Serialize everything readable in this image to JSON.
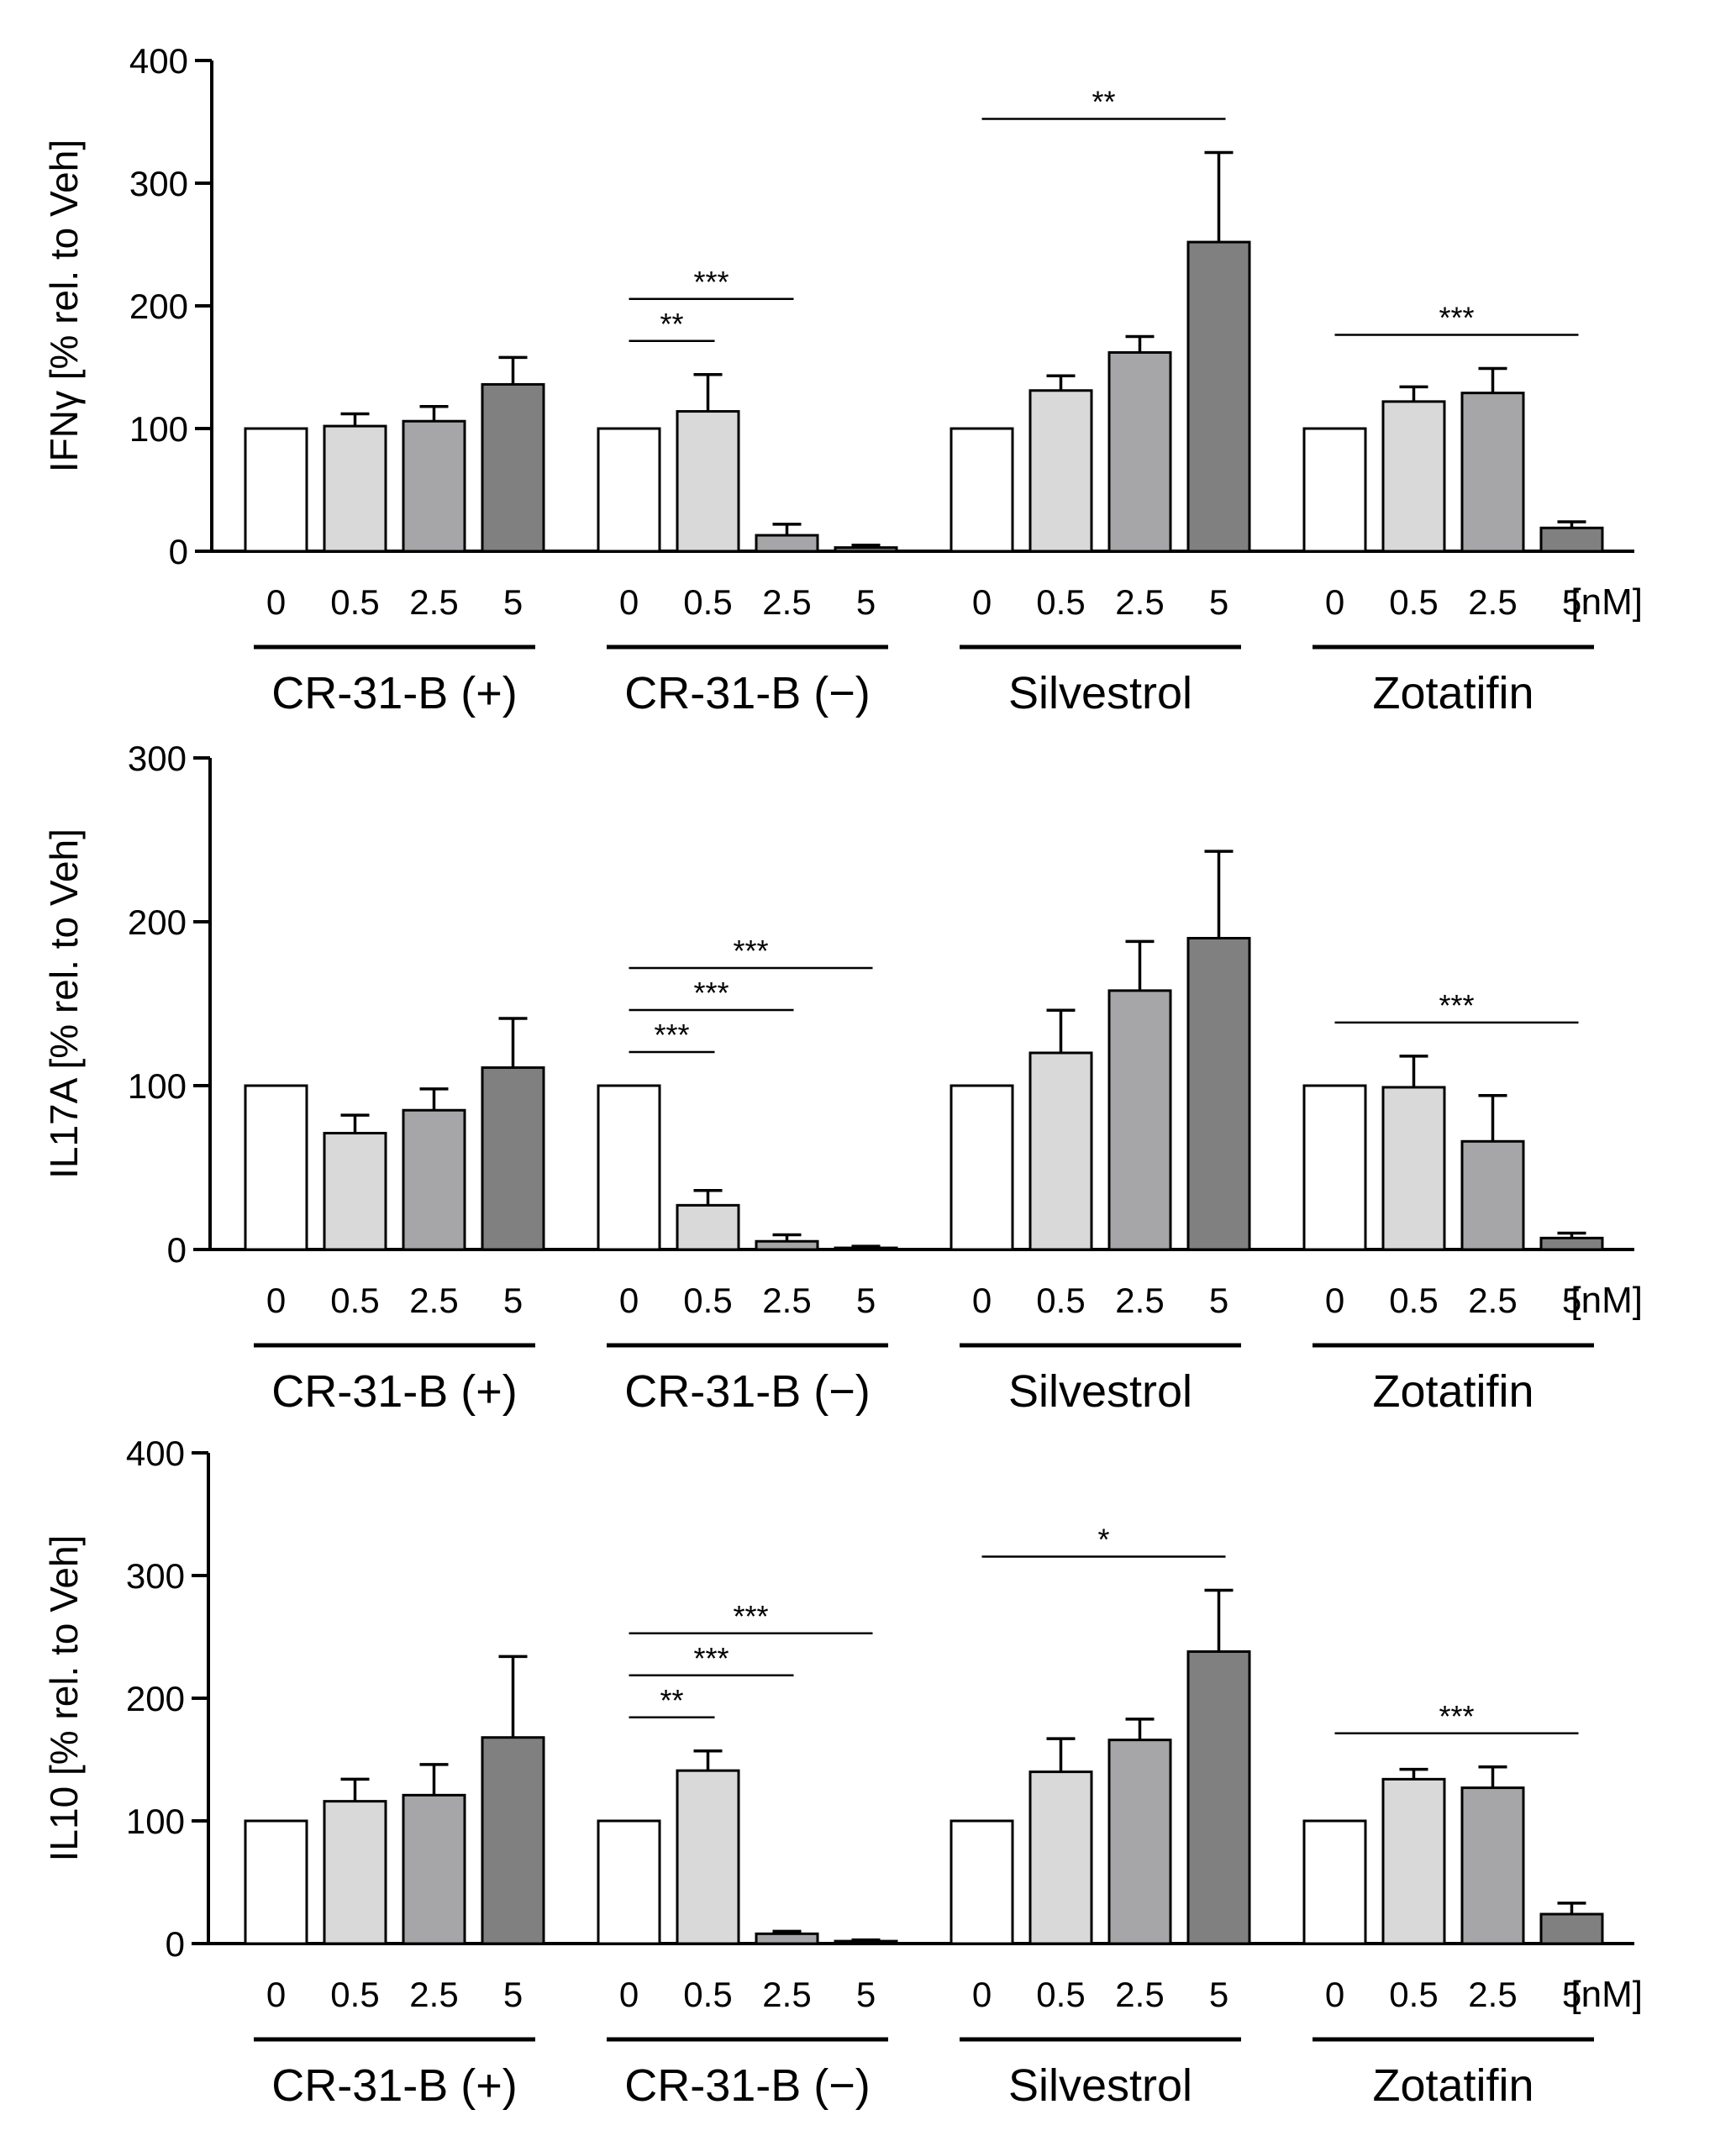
{
  "colors": {
    "c0": "#ffffff",
    "c0_5": "#d9d9d9",
    "c2_5": "#a6a6a8",
    "c5": "#808080",
    "stroke": "#000000"
  },
  "chart_data": [
    {
      "type": "bar",
      "ylabel": "IFNγ [% rel. to Veh]",
      "ylim": [
        0,
        400
      ],
      "yticks": [
        0,
        100,
        200,
        300,
        400
      ],
      "concentrations": [
        "0",
        "0.5",
        "2.5",
        "5"
      ],
      "unit": "[nM]",
      "series": [
        {
          "name": "CR-31-B (+)",
          "values": [
            100,
            102,
            106,
            136
          ],
          "errors": [
            0,
            10,
            12,
            22
          ]
        },
        {
          "name": "CR-31-B (−)",
          "values": [
            100,
            114,
            13,
            3
          ],
          "errors": [
            0,
            30,
            9,
            2
          ]
        },
        {
          "name": "Silvestrol",
          "values": [
            100,
            131,
            162,
            252
          ],
          "errors": [
            0,
            12,
            13,
            73
          ]
        },
        {
          "name": "Zotatifin",
          "values": [
            100,
            122,
            129,
            19
          ],
          "errors": [
            0,
            12,
            20,
            5
          ]
        }
      ],
      "significance": [
        {
          "group": 1,
          "from": 0,
          "to": 2,
          "label": "***"
        },
        {
          "group": 1,
          "from": 0,
          "to": 1,
          "label": "**"
        },
        {
          "group": 2,
          "from": 0,
          "to": 3,
          "label": "**"
        },
        {
          "group": 3,
          "from": 0,
          "to": 3,
          "label": "***"
        }
      ]
    },
    {
      "type": "bar",
      "ylabel": "IL17A [% rel. to Veh]",
      "ylim": [
        0,
        300
      ],
      "yticks": [
        0,
        100,
        200,
        300
      ],
      "concentrations": [
        "0",
        "0.5",
        "2.5",
        "5"
      ],
      "unit": "[nM]",
      "series": [
        {
          "name": "CR-31-B (+)",
          "values": [
            100,
            71,
            85,
            111
          ],
          "errors": [
            0,
            11,
            13,
            30
          ]
        },
        {
          "name": "CR-31-B (−)",
          "values": [
            100,
            27,
            5,
            1
          ],
          "errors": [
            0,
            9,
            4,
            1
          ]
        },
        {
          "name": "Silvestrol",
          "values": [
            100,
            120,
            158,
            190
          ],
          "errors": [
            0,
            26,
            30,
            53
          ]
        },
        {
          "name": "Zotatifin",
          "values": [
            100,
            99,
            66,
            7
          ],
          "errors": [
            0,
            19,
            28,
            3
          ]
        }
      ],
      "significance": [
        {
          "group": 1,
          "from": 0,
          "to": 3,
          "label": "***"
        },
        {
          "group": 1,
          "from": 0,
          "to": 2,
          "label": "***"
        },
        {
          "group": 1,
          "from": 0,
          "to": 1,
          "label": "***"
        },
        {
          "group": 3,
          "from": 0,
          "to": 3,
          "label": "***"
        }
      ]
    },
    {
      "type": "bar",
      "ylabel": "IL10 [% rel. to Veh]",
      "ylim": [
        0,
        400
      ],
      "yticks": [
        0,
        100,
        200,
        300,
        400
      ],
      "concentrations": [
        "0",
        "0.5",
        "2.5",
        "5"
      ],
      "unit": "[nM]",
      "series": [
        {
          "name": "CR-31-B (+)",
          "values": [
            100,
            116,
            121,
            168
          ],
          "errors": [
            0,
            18,
            25,
            66
          ]
        },
        {
          "name": "CR-31-B (−)",
          "values": [
            100,
            141,
            8,
            2
          ],
          "errors": [
            0,
            16,
            2,
            1
          ]
        },
        {
          "name": "Silvestrol",
          "values": [
            100,
            140,
            166,
            238
          ],
          "errors": [
            0,
            27,
            17,
            50
          ]
        },
        {
          "name": "Zotatifin",
          "values": [
            100,
            134,
            127,
            24
          ],
          "errors": [
            0,
            8,
            17,
            9
          ]
        }
      ],
      "significance": [
        {
          "group": 1,
          "from": 0,
          "to": 3,
          "label": "***"
        },
        {
          "group": 1,
          "from": 0,
          "to": 2,
          "label": "***"
        },
        {
          "group": 1,
          "from": 0,
          "to": 1,
          "label": "**"
        },
        {
          "group": 2,
          "from": 0,
          "to": 3,
          "label": "*"
        },
        {
          "group": 3,
          "from": 0,
          "to": 3,
          "label": "***"
        }
      ]
    }
  ]
}
